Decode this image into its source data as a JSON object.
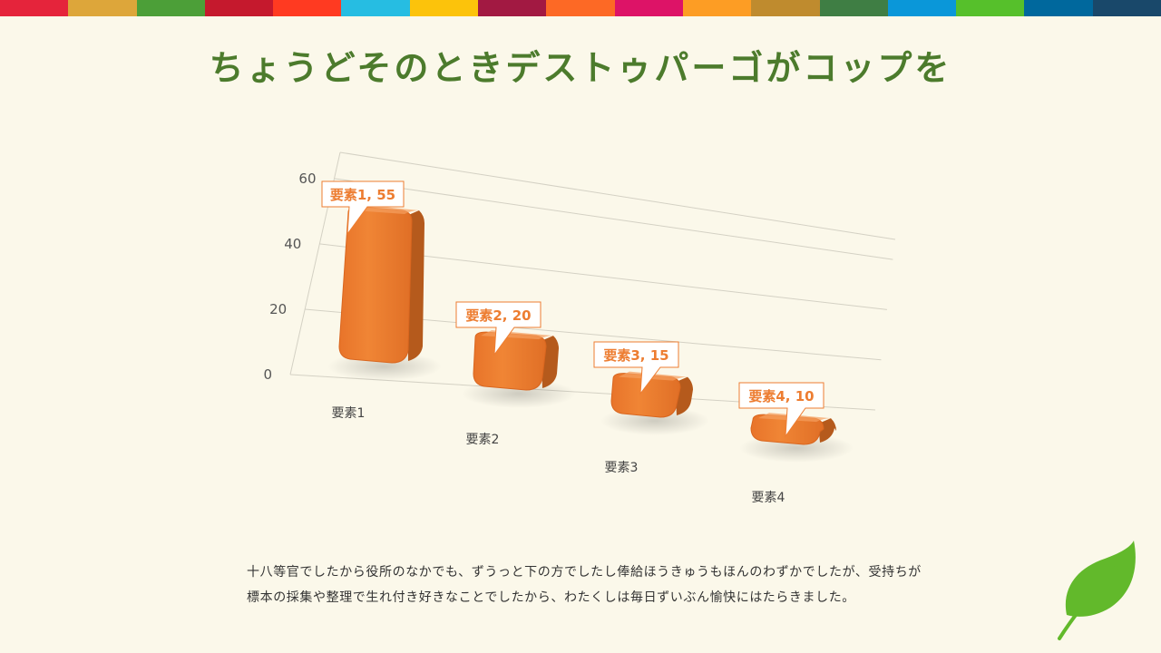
{
  "stripe_colors": [
    "#e5243b",
    "#dda63a",
    "#4c9f38",
    "#c5192d",
    "#ff3a21",
    "#26bde2",
    "#fcc30b",
    "#a21942",
    "#fd6925",
    "#dd1367",
    "#fd9d24",
    "#bf8b2e",
    "#3f7e44",
    "#0a97d9",
    "#56c02b",
    "#00689d",
    "#19486a"
  ],
  "title": "ちょうどそのときデストゥパーゴがコップを",
  "chart_data": {
    "type": "bar",
    "categories": [
      "要素1",
      "要素2",
      "要素3",
      "要素4"
    ],
    "values": [
      55,
      20,
      15,
      10
    ],
    "data_labels": [
      "要素1, 55",
      "要素2, 20",
      "要素3, 15",
      "要素4, 10"
    ],
    "y_ticks": [
      "0",
      "20",
      "40",
      "60"
    ],
    "ylim": [
      0,
      60
    ],
    "grid": true,
    "bar_color": "#ed7d31",
    "title": "",
    "xlabel": "",
    "ylabel": ""
  },
  "caption": {
    "line1": "十八等官でしたから役所のなかでも、ずうっと下の方でしたし俸給ほうきゅうもほんのわずかでしたが、受持ちが",
    "line2": "標本の採集や整理で生れ付き好きなことでしたから、わたくしは毎日ずいぶん愉快にはたらきました。"
  },
  "decor": {
    "leaf_icon": "leaf-icon",
    "leaf_color": "#62b92b"
  }
}
